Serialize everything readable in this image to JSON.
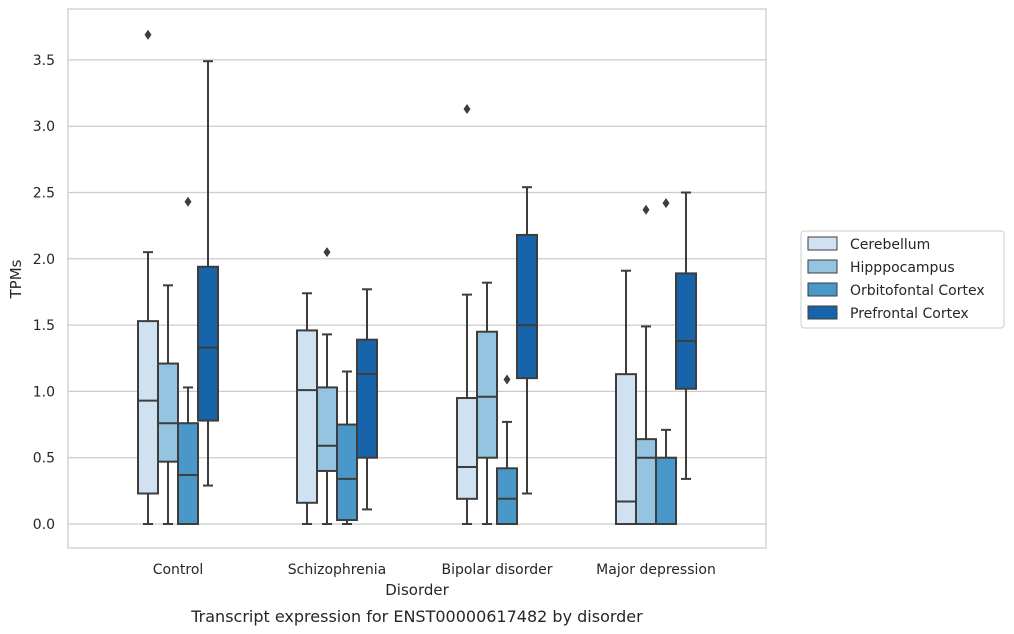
{
  "chart_data": {
    "type": "box",
    "title": "",
    "caption": "Transcript expression for ENST00000617482 by disorder",
    "xlabel": "Disorder",
    "ylabel": "TPMs",
    "ylim": [
      -0.17,
      3.87
    ],
    "yticks": [
      0.0,
      0.5,
      1.0,
      1.5,
      2.0,
      2.5,
      3.0,
      3.5
    ],
    "ytick_labels": [
      "0.0",
      "0.5",
      "1.0",
      "1.5",
      "2.0",
      "2.5",
      "3.0",
      "3.5"
    ],
    "grid": "horizontal",
    "legend_position": "right",
    "categories": [
      "Control",
      "Schizophrenia",
      "Bipolar disorder",
      "Major depression"
    ],
    "series": [
      {
        "name": "Cerebellum",
        "color": "#d0e1f2",
        "boxes": [
          {
            "whisker_low": 0.0,
            "q1": 0.23,
            "median": 0.93,
            "q3": 1.53,
            "whisker_high": 2.05,
            "outliers": [
              3.69
            ]
          },
          {
            "whisker_low": 0.0,
            "q1": 0.16,
            "median": 1.01,
            "q3": 1.46,
            "whisker_high": 1.74,
            "outliers": []
          },
          {
            "whisker_low": 0.0,
            "q1": 0.19,
            "median": 0.43,
            "q3": 0.95,
            "whisker_high": 1.73,
            "outliers": [
              3.13
            ]
          },
          {
            "whisker_low": 0.0,
            "q1": 0.0,
            "median": 0.17,
            "q3": 1.13,
            "whisker_high": 1.91,
            "outliers": []
          }
        ]
      },
      {
        "name": "Hipppocampus",
        "color": "#94c4df",
        "boxes": [
          {
            "whisker_low": 0.0,
            "q1": 0.47,
            "median": 0.76,
            "q3": 1.21,
            "whisker_high": 1.8,
            "outliers": []
          },
          {
            "whisker_low": 0.0,
            "q1": 0.4,
            "median": 0.59,
            "q3": 1.03,
            "whisker_high": 1.43,
            "outliers": [
              2.05
            ]
          },
          {
            "whisker_low": 0.0,
            "q1": 0.5,
            "median": 0.96,
            "q3": 1.45,
            "whisker_high": 1.82,
            "outliers": []
          },
          {
            "whisker_low": 0.0,
            "q1": 0.0,
            "median": 0.5,
            "q3": 0.64,
            "whisker_high": 1.49,
            "outliers": [
              2.37
            ]
          }
        ]
      },
      {
        "name": "Orbitofontal Cortex",
        "color": "#4a98c9",
        "boxes": [
          {
            "whisker_low": 0.0,
            "q1": 0.0,
            "median": 0.37,
            "q3": 0.76,
            "whisker_high": 1.03,
            "outliers": [
              2.43
            ]
          },
          {
            "whisker_low": 0.0,
            "q1": 0.03,
            "median": 0.34,
            "q3": 0.75,
            "whisker_high": 1.15,
            "outliers": []
          },
          {
            "whisker_low": 0.0,
            "q1": 0.0,
            "median": 0.19,
            "q3": 0.42,
            "whisker_high": 0.77,
            "outliers": [
              1.09
            ]
          },
          {
            "whisker_low": 0.0,
            "q1": 0.0,
            "median": 0.0,
            "q3": 0.5,
            "whisker_high": 0.71,
            "outliers": [
              2.42
            ]
          }
        ]
      },
      {
        "name": "Prefrontal Cortex",
        "color": "#1764ab",
        "boxes": [
          {
            "whisker_low": 0.29,
            "q1": 0.78,
            "median": 1.33,
            "q3": 1.94,
            "whisker_high": 3.49,
            "outliers": []
          },
          {
            "whisker_low": 0.11,
            "q1": 0.5,
            "median": 1.13,
            "q3": 1.39,
            "whisker_high": 1.77,
            "outliers": []
          },
          {
            "whisker_low": 0.23,
            "q1": 1.1,
            "median": 1.5,
            "q3": 2.18,
            "whisker_high": 2.54,
            "outliers": []
          },
          {
            "whisker_low": 0.34,
            "q1": 1.02,
            "median": 1.38,
            "q3": 1.89,
            "whisker_high": 2.5,
            "outliers": []
          }
        ]
      }
    ]
  }
}
